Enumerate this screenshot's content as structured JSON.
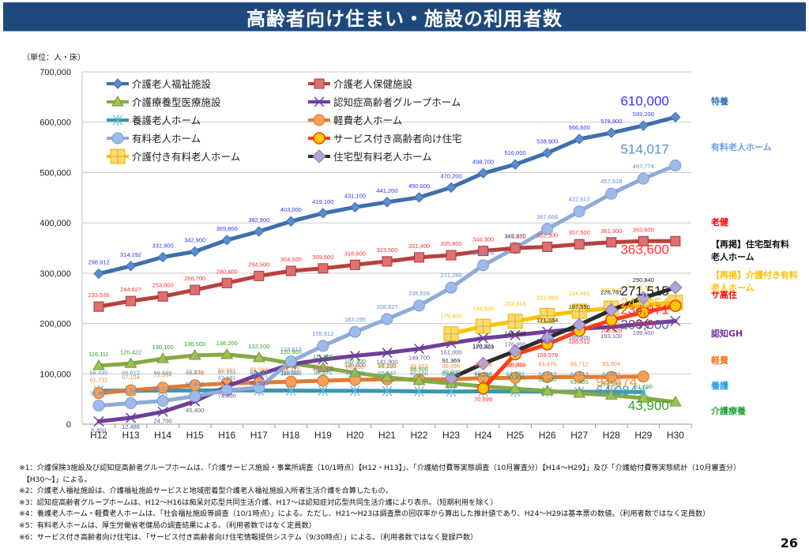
{
  "page": {
    "title": "高齢者向け住まい・施設の利用者数",
    "unit_label": "（単位：人・床）",
    "page_number": "26",
    "notes": [
      "※1：介護保険3施設及び認知症高齢者グループホームは、「介護サービス施設・事業所調査（10/1時点）【H12・H13】」、「介護給付費等実態調査（10月審査分）【H14～H29】」及び「介護給付費等実態統計（10月審査分）",
      "　【H30～】」による。",
      "※2：介護老人福祉施設は、介護福祉施設サービスと地域密着型介護老人福祉施設入所者生活介護を合算したもの。",
      "※3：認知症高齢者グループホームは、H12～H16は痴呆対応型共同生活介護、H17～は認知症対応型共同生活介護により表示。（短期利用を除く）",
      "※4：養護老人ホーム・軽費老人ホームは、「社会福祉施設等調査（10/1時点）」による。ただし、H21～H23は調査票の回収率から算出した推計値であり、H24～H29は基本票の数値。（利用者数ではなく定員数）",
      "※5：有料老人ホームは、厚生労働省老健局の調査結果による。（利用者数ではなく定員数）",
      "※6：サービス付き高齢者向け住宅は、「サービス付き高齢者向け住宅情報提供システム（9/30時点）」による。（利用者数ではなく登録戸数）"
    ]
  },
  "chart_data": {
    "type": "line",
    "title": "高齢者向け住まい・施設の利用者数",
    "xlabel": "",
    "ylabel": "（単位：人・床）",
    "ylim": [
      0,
      700000
    ],
    "yticks": [
      0,
      100000,
      200000,
      300000,
      400000,
      500000,
      600000,
      700000
    ],
    "ytick_labels": [
      "0",
      "100,000",
      "200,000",
      "300,000",
      "400,000",
      "500,000",
      "600,000",
      "700,000"
    ],
    "grid": "horizontal",
    "legend_position": "top-left",
    "categories": [
      "H12",
      "H13",
      "H14",
      "H15",
      "H16",
      "H17",
      "H18",
      "H19",
      "H20",
      "H21",
      "H22",
      "H23",
      "H24",
      "H25",
      "H26",
      "H27",
      "H28",
      "H29",
      "H30"
    ],
    "series": [
      {
        "name": "介護老人福祉施設",
        "color": "#3f6fad",
        "label_color": "#3333ff",
        "marker": "diamond",
        "end_label": "610,000",
        "side_label": "特養",
        "side_color": "#2e75b6",
        "values": [
          298912,
          314192,
          331900,
          342900,
          365800,
          382900,
          403000,
          419100,
          431100,
          441200,
          450600,
          470200,
          498700,
          516000,
          538900,
          566600,
          578900,
          593200,
          610000
        ]
      },
      {
        "name": "介護老人保健施設",
        "color": "#b8413e",
        "label_color": "#ff3333",
        "marker": "square",
        "end_label": "363,600",
        "side_label": "老健",
        "side_color": "#ff0000",
        "values": [
          233536,
          244627,
          253800,
          266700,
          280400,
          294500,
          304500,
          309500,
          316600,
          323500,
          331400,
          335800,
          344300,
          349900,
          352300,
          357500,
          361300,
          363600,
          363600
        ]
      },
      {
        "name": "介護療養型医療施設",
        "color": "#86a944",
        "label_color": "#2ca02c",
        "marker": "triangle",
        "end_label": "43,900",
        "side_label": "介護療養",
        "side_color": "#22a33a",
        "values": [
          116111,
          120422,
          130100,
          136500,
          138200,
          132100,
          120900,
          111800,
          102300,
          93100,
          86500,
          80900,
          75200,
          70300,
          66100,
          61300,
          57500,
          51600,
          43900
        ]
      },
      {
        "name": "認知症高齢者グループホーム",
        "color": "#6d3f99",
        "label_color": "#6b5495",
        "marker": "x",
        "end_label": "205,000",
        "side_label": "認知GH",
        "side_color": "#7030a0",
        "values": [
          5450,
          12486,
          24700,
          45400,
          74800,
          98500,
          118900,
          128500,
          135800,
          141900,
          149700,
          161000,
          170800,
          176900,
          183600,
          189800,
          193100,
          199400,
          205000
        ]
      },
      {
        "name": "養護老人ホーム",
        "color": "#3a97b1",
        "label_color": "#4aa0c0",
        "marker": "star",
        "end_label": "64,084",
        "side_label": "養護",
        "side_color": "#19a0e8",
        "values": [
          66495,
          66612,
          66686,
          66970,
          67181,
          66837,
          66667,
          66375,
          66239,
          65847,
          65186,
          64630,
          65113,
          64830,
          64443,
          64313,
          64091,
          64084,
          null
        ]
      },
      {
        "name": "軽費老人ホーム",
        "color": "#e07c35",
        "label_color": "#f58a3c",
        "marker": "circle",
        "end_label": "94,474",
        "side_label": "軽費",
        "side_color": "#f07d22",
        "values": [
          61732,
          67154,
          72364,
          77334,
          80951,
          82594,
          84325,
          86367,
          88059,
          89235,
          89053,
          89096,
          91474,
          92204,
          93479,
          93712,
          93804,
          94474,
          null
        ]
      },
      {
        "name": "有料老人ホーム",
        "color": "#8fabd9",
        "label_color": "#5b8fd6",
        "marker": "circle",
        "end_label": "514,017",
        "side_label": "有料老人ホーム",
        "side_color": "#6fa0e0",
        "values": [
          36856,
          41582,
          46121,
          55448,
          67181,
          72681,
          124610,
          155612,
          183295,
          208827,
          235526,
          271286,
          315678,
          349975,
          387666,
          422612,
          457918,
          487774,
          514017
        ]
      },
      {
        "name": "サービス付き高齢者向け住宅",
        "color": "#ff3b16",
        "label_color": "#ff2a2a",
        "marker": "circle-yellow",
        "end_label": "234,971",
        "side_label": "サ高住",
        "side_color": "#ff0000",
        "values": [
          null,
          null,
          null,
          null,
          null,
          null,
          null,
          null,
          null,
          null,
          null,
          null,
          70999,
          138803,
          158579,
          185512,
          206929,
          222085,
          234971
        ]
      },
      {
        "name": "介護付き有料老人ホーム",
        "color": "#ffc000",
        "label_color": "#ffc000",
        "marker": "square-plus",
        "end_label": "241,954",
        "side_label": "【再掲】介護付き有料老人ホーム",
        "side_color": "#ffc000",
        "values": [
          null,
          null,
          null,
          null,
          null,
          null,
          null,
          null,
          null,
          null,
          null,
          179404,
          194539,
          204316,
          215989,
          224461,
          230570,
          236391,
          241954
        ]
      },
      {
        "name": "住宅型有料老人ホーム",
        "color": "#2b2b2b",
        "label_color": "#222222",
        "marker": "diamond-lilac",
        "end_label": "271,515",
        "side_label": "【再掲】住宅型有料老人ホーム",
        "side_color": "#111111",
        "values": [
          null,
          null,
          null,
          null,
          null,
          null,
          null,
          null,
          null,
          null,
          null,
          91369,
          120321,
          145048,
          171164,
          197550,
          226781,
          250840,
          271515
        ]
      }
    ]
  }
}
